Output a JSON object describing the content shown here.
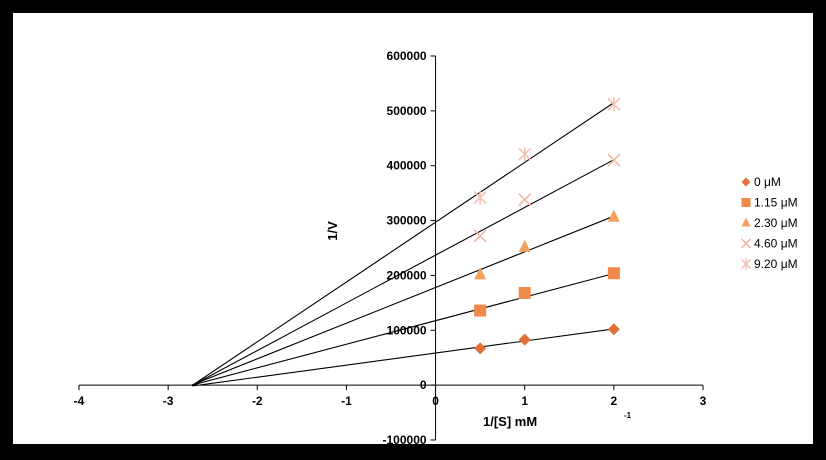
{
  "chart_data": {
    "type": "scatter",
    "title": "",
    "xlabel": "1/[S]  mM",
    "xlabel_sup": "-1",
    "ylabel": "1/V",
    "xlim": [
      -4,
      3
    ],
    "ylim": [
      -100000,
      600000
    ],
    "x_ticks": [
      -4,
      -3,
      -2,
      -1,
      0,
      1,
      2,
      3
    ],
    "y_ticks": [
      -100000,
      0,
      100000,
      200000,
      300000,
      400000,
      500000,
      600000
    ],
    "x_tick_labels": [
      "-4",
      "-3",
      "-2",
      "-1",
      "0",
      "1",
      "2",
      "3"
    ],
    "y_tick_labels": [
      "-100000",
      "0",
      "100000",
      "200000",
      "300000",
      "400000",
      "500000",
      "600000"
    ],
    "grid": false,
    "legend_position": "right",
    "trendline_color": "#000000",
    "series": [
      {
        "name": "0 μM",
        "marker": "diamond",
        "color": "#e0713a",
        "x": [
          0.5,
          1,
          2
        ],
        "y": [
          67000,
          83000,
          102000
        ],
        "fit": {
          "slope": 22000,
          "intercept": 58500,
          "x_range": [
            -2.73,
            2
          ]
        }
      },
      {
        "name": "1.15 μM",
        "marker": "square",
        "color": "#f08a4b",
        "x": [
          0.5,
          1,
          2
        ],
        "y": [
          136000,
          168000,
          204000
        ],
        "fit": {
          "slope": 43000,
          "intercept": 117500,
          "x_range": [
            -2.73,
            2
          ]
        }
      },
      {
        "name": "2.30 μM",
        "marker": "triangle",
        "color": "#f5a05e",
        "x": [
          0.5,
          1,
          2
        ],
        "y": [
          202000,
          252000,
          307000
        ],
        "fit": {
          "slope": 65000,
          "intercept": 178000,
          "x_range": [
            -2.73,
            2
          ]
        }
      },
      {
        "name": "4.60 μM",
        "marker": "x",
        "color": "#f2b8a8",
        "x": [
          0.5,
          1,
          2
        ],
        "y": [
          272000,
          338000,
          410000
        ],
        "fit": {
          "slope": 87000,
          "intercept": 237000,
          "x_range": [
            -2.73,
            2
          ]
        }
      },
      {
        "name": "9.20 μM",
        "marker": "star",
        "color": "#f5c2b6",
        "x": [
          0.5,
          1,
          2
        ],
        "y": [
          342000,
          421000,
          512000
        ],
        "fit": {
          "slope": 109000,
          "intercept": 297000,
          "x_range": [
            -2.73,
            2
          ]
        }
      }
    ]
  }
}
